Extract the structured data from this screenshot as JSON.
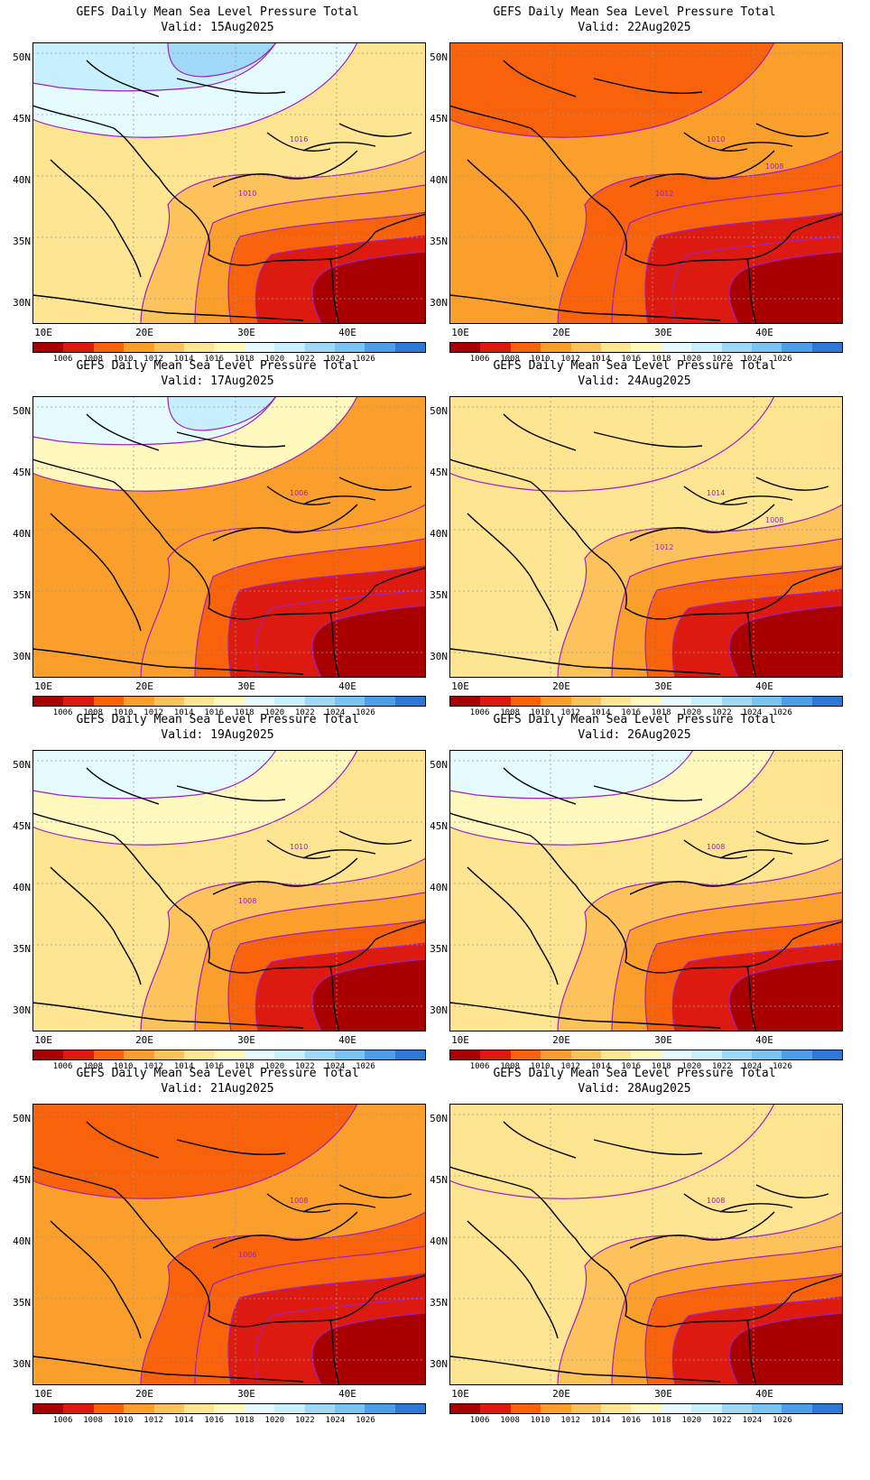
{
  "common": {
    "title": "GEFS Daily Mean Sea Level Pressure Total",
    "lat_labels": [
      "50N",
      "45N",
      "40N",
      "35N",
      "30N"
    ],
    "lon_labels": [
      "10E",
      "20E",
      "30E",
      "40E"
    ],
    "colorbar_labels": [
      "1006",
      "1008",
      "1010",
      "1012",
      "1014",
      "1016",
      "1018",
      "1020",
      "1022",
      "1024",
      "1026"
    ],
    "colorbar_colors": [
      "#a80000",
      "#dd1a10",
      "#f7620a",
      "#fb9f2c",
      "#fcc35c",
      "#fde592",
      "#fff9bd",
      "#e6fbff",
      "#c7effd",
      "#a0d8f7",
      "#7ac4f3",
      "#4c9ee9",
      "#2f79d6"
    ]
  },
  "panels": [
    {
      "valid": "Valid: 15Aug2025",
      "contour_labels": [
        "1016",
        "1010"
      ],
      "regime": "high-north"
    },
    {
      "valid": "Valid: 22Aug2025",
      "contour_labels": [
        "1010",
        "1012",
        "1008"
      ],
      "regime": "low-all"
    },
    {
      "valid": "Valid: 17Aug2025",
      "contour_labels": [
        "1006"
      ],
      "regime": "mid-low"
    },
    {
      "valid": "Valid: 24Aug2025",
      "contour_labels": [
        "1014",
        "1012",
        "1008"
      ],
      "regime": "mid-high"
    },
    {
      "valid": "Valid: 19Aug2025",
      "contour_labels": [
        "1010",
        "1008"
      ],
      "regime": "mid"
    },
    {
      "valid": "Valid: 26Aug2025",
      "contour_labels": [
        "1008"
      ],
      "regime": "mid"
    },
    {
      "valid": "Valid: 21Aug2025",
      "contour_labels": [
        "1008",
        "1006"
      ],
      "regime": "low-all"
    },
    {
      "valid": "Valid: 28Aug2025",
      "contour_labels": [
        "1008"
      ],
      "regime": "mid-high"
    }
  ]
}
